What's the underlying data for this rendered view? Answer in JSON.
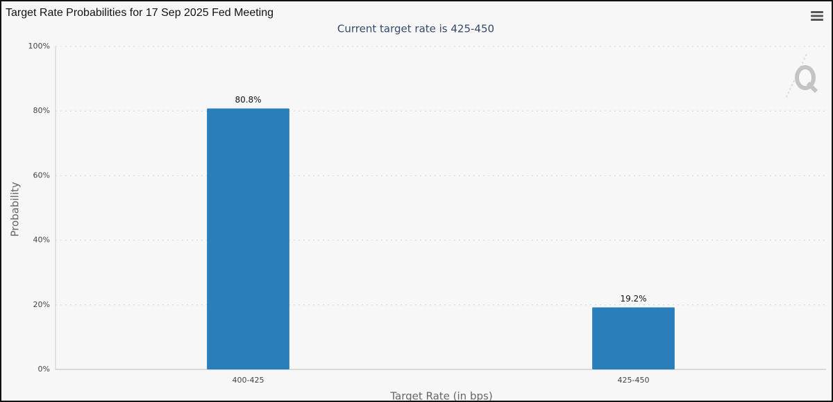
{
  "chart_data": {
    "type": "bar",
    "title": "Target Rate Probabilities for 17 Sep 2025 Fed Meeting",
    "subtitle": "Current target rate is 425-450",
    "x_label": "Target Rate (in bps)",
    "y_label": "Probability",
    "categories": [
      "400-425",
      "425-450"
    ],
    "values": [
      80.8,
      19.2
    ],
    "value_labels": [
      "80.8%",
      "19.2%"
    ],
    "color": "#2a7fba",
    "ylim": [
      0,
      100
    ],
    "yticks": [
      {
        "value": 0,
        "label": "0%"
      },
      {
        "value": 20,
        "label": "20%"
      },
      {
        "value": 40,
        "label": "40%"
      },
      {
        "value": 60,
        "label": "60%"
      },
      {
        "value": 80,
        "label": "80%"
      },
      {
        "value": 100,
        "label": "100%"
      }
    ],
    "grid": true
  }
}
